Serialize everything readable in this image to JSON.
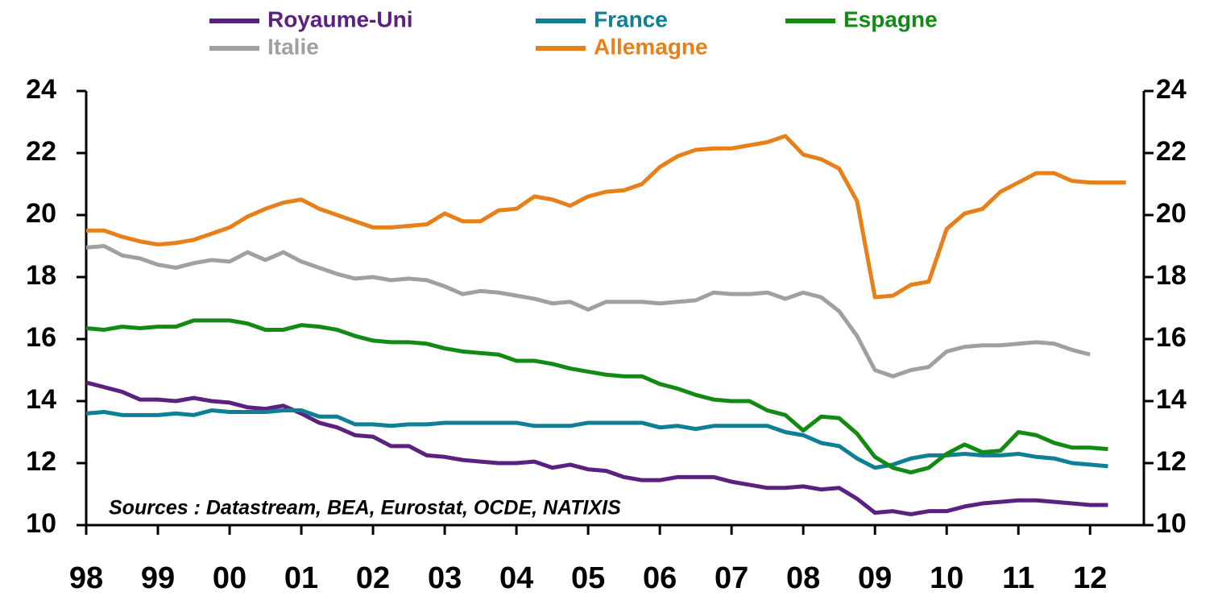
{
  "chart_data": {
    "type": "line",
    "annotation": "Sources : Datastream, BEA, Eurostat, OCDE, NATIXIS",
    "x": [
      1998,
      1998.25,
      1998.5,
      1998.75,
      1999,
      1999.25,
      1999.5,
      1999.75,
      2000,
      2000.25,
      2000.5,
      2000.75,
      2001,
      2001.25,
      2001.5,
      2001.75,
      2002,
      2002.25,
      2002.5,
      2002.75,
      2003,
      2003.25,
      2003.5,
      2003.75,
      2004,
      2004.25,
      2004.5,
      2004.75,
      2005,
      2005.25,
      2005.5,
      2005.75,
      2006,
      2006.25,
      2006.5,
      2006.75,
      2007,
      2007.25,
      2007.5,
      2007.75,
      2008,
      2008.25,
      2008.5,
      2008.75,
      2009,
      2009.25,
      2009.5,
      2009.75,
      2010,
      2010.25,
      2010.5,
      2010.75,
      2011,
      2011.25,
      2011.5,
      2011.75,
      2012,
      2012.25,
      2012.5
    ],
    "xlim": [
      1998,
      2012.75
    ],
    "xticks": [
      {
        "value": 1998,
        "label": "98"
      },
      {
        "value": 1999,
        "label": "99"
      },
      {
        "value": 2000,
        "label": "00"
      },
      {
        "value": 2001,
        "label": "01"
      },
      {
        "value": 2002,
        "label": "02"
      },
      {
        "value": 2003,
        "label": "03"
      },
      {
        "value": 2004,
        "label": "04"
      },
      {
        "value": 2005,
        "label": "05"
      },
      {
        "value": 2006,
        "label": "06"
      },
      {
        "value": 2007,
        "label": "07"
      },
      {
        "value": 2008,
        "label": "08"
      },
      {
        "value": 2009,
        "label": "09"
      },
      {
        "value": 2010,
        "label": "10"
      },
      {
        "value": 2011,
        "label": "11"
      },
      {
        "value": 2012,
        "label": "12"
      }
    ],
    "ylim": [
      10,
      24
    ],
    "yticks": [
      10,
      12,
      14,
      16,
      18,
      20,
      22,
      24
    ],
    "series": [
      {
        "name": "Royaume-Uni",
        "color": "#5b2180",
        "values": [
          14.6,
          14.45,
          14.3,
          14.05,
          14.05,
          14.0,
          14.1,
          14.0,
          13.95,
          13.8,
          13.75,
          13.85,
          13.6,
          13.3,
          13.15,
          12.9,
          12.85,
          12.55,
          12.55,
          12.25,
          12.2,
          12.1,
          12.05,
          12.0,
          12.0,
          12.05,
          11.85,
          11.95,
          11.8,
          11.75,
          11.55,
          11.45,
          11.45,
          11.55,
          11.55,
          11.55,
          11.4,
          11.3,
          11.2,
          11.2,
          11.25,
          11.15,
          11.2,
          10.85,
          10.4,
          10.45,
          10.35,
          10.45,
          10.45,
          10.6,
          10.7,
          10.75,
          10.8,
          10.8,
          10.75,
          10.7,
          10.65,
          10.65,
          null
        ]
      },
      {
        "name": "France",
        "color": "#0e7f94",
        "values": [
          13.6,
          13.65,
          13.55,
          13.55,
          13.55,
          13.6,
          13.55,
          13.7,
          13.65,
          13.65,
          13.65,
          13.7,
          13.7,
          13.5,
          13.5,
          13.25,
          13.25,
          13.2,
          13.25,
          13.25,
          13.3,
          13.3,
          13.3,
          13.3,
          13.3,
          13.2,
          13.2,
          13.2,
          13.3,
          13.3,
          13.3,
          13.3,
          13.15,
          13.2,
          13.1,
          13.2,
          13.2,
          13.2,
          13.2,
          13.0,
          12.9,
          12.65,
          12.55,
          12.15,
          11.85,
          11.95,
          12.15,
          12.25,
          12.25,
          12.3,
          12.25,
          12.25,
          12.3,
          12.2,
          12.15,
          12.0,
          11.95,
          11.9,
          null
        ]
      },
      {
        "name": "Espagne",
        "color": "#138a13",
        "values": [
          16.35,
          16.3,
          16.4,
          16.35,
          16.4,
          16.4,
          16.6,
          16.6,
          16.6,
          16.5,
          16.3,
          16.3,
          16.45,
          16.4,
          16.3,
          16.1,
          15.95,
          15.9,
          15.9,
          15.85,
          15.7,
          15.6,
          15.55,
          15.5,
          15.3,
          15.3,
          15.2,
          15.05,
          14.95,
          14.85,
          14.8,
          14.8,
          14.55,
          14.4,
          14.2,
          14.05,
          14.0,
          14.0,
          13.7,
          13.55,
          13.05,
          13.5,
          13.45,
          12.95,
          12.2,
          11.85,
          11.7,
          11.85,
          12.3,
          12.6,
          12.35,
          12.4,
          13.0,
          12.9,
          12.65,
          12.5,
          12.5,
          12.45,
          null
        ]
      },
      {
        "name": "Italie",
        "color": "#a0a0a0",
        "values": [
          18.95,
          19.0,
          18.7,
          18.6,
          18.4,
          18.3,
          18.45,
          18.55,
          18.5,
          18.8,
          18.55,
          18.8,
          18.5,
          18.3,
          18.1,
          17.95,
          18.0,
          17.9,
          17.95,
          17.9,
          17.7,
          17.45,
          17.55,
          17.5,
          17.4,
          17.3,
          17.15,
          17.2,
          16.95,
          17.2,
          17.2,
          17.2,
          17.15,
          17.2,
          17.25,
          17.5,
          17.45,
          17.45,
          17.5,
          17.3,
          17.5,
          17.35,
          16.9,
          16.1,
          15.0,
          14.8,
          15.0,
          15.1,
          15.6,
          15.75,
          15.8,
          15.8,
          15.85,
          15.9,
          15.85,
          15.65,
          15.5,
          null,
          null
        ]
      },
      {
        "name": "Allemagne",
        "color": "#e8801a",
        "values": [
          19.5,
          19.5,
          19.3,
          19.15,
          19.05,
          19.1,
          19.2,
          19.4,
          19.6,
          19.95,
          20.2,
          20.4,
          20.5,
          20.2,
          20.0,
          19.8,
          19.6,
          19.6,
          19.65,
          19.7,
          20.05,
          19.8,
          19.8,
          20.15,
          20.2,
          20.6,
          20.5,
          20.3,
          20.6,
          20.75,
          20.8,
          21.0,
          21.55,
          21.9,
          22.1,
          22.15,
          22.15,
          22.25,
          22.35,
          22.55,
          21.95,
          21.8,
          21.5,
          20.45,
          17.35,
          17.4,
          17.75,
          17.85,
          19.55,
          20.05,
          20.2,
          20.75,
          21.05,
          21.35,
          21.35,
          21.1,
          21.05,
          21.05,
          21.05
        ]
      }
    ]
  }
}
